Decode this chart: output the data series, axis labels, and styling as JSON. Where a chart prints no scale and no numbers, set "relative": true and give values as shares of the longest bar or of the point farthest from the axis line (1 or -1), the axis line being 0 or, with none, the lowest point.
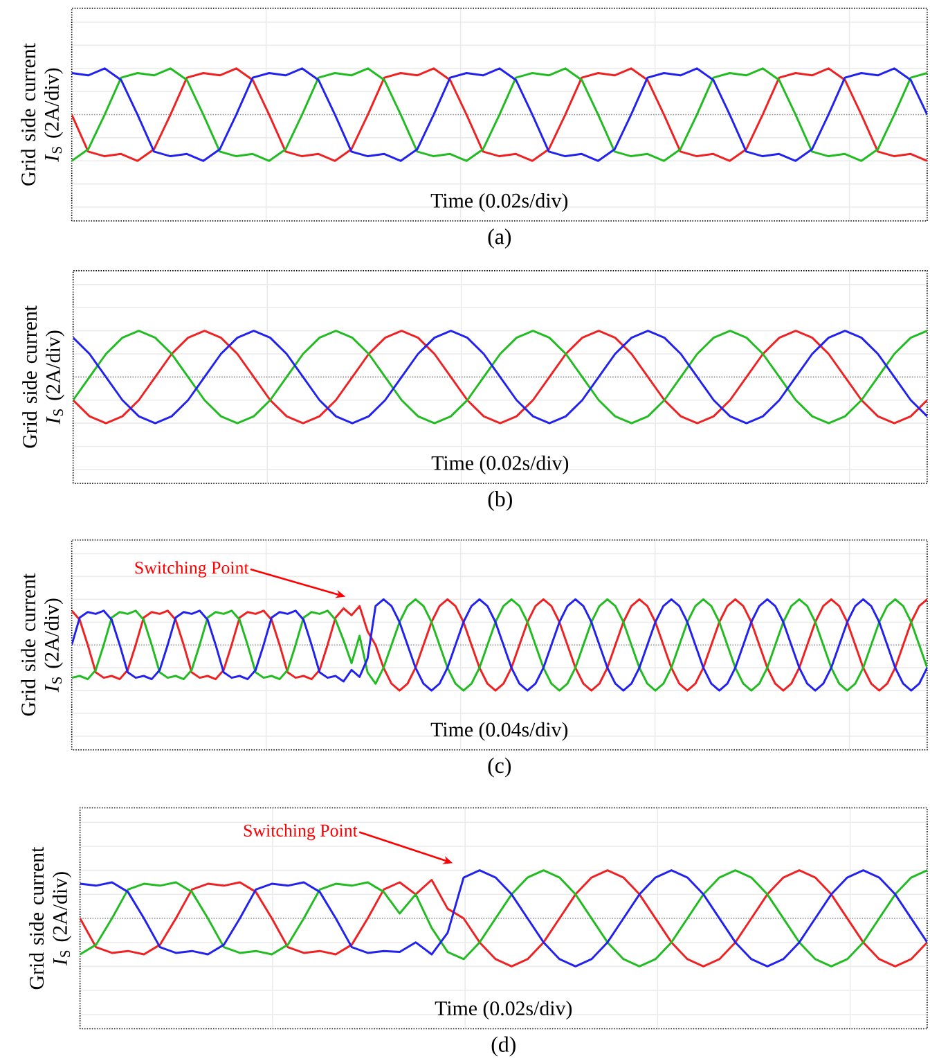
{
  "chart_data": [
    {
      "type": "line",
      "title": "(a)",
      "xlabel": "Time (0.02s/div)",
      "ylabel": "Grid side current *I*$_{S}$ (2A/div)",
      "relative": true,
      "grid": true,
      "ref_lines": [
        {
          "axis": "y",
          "value": 0,
          "color": "#8c8c8c",
          "line_style": "dotted"
        }
      ],
      "categories": [
        null,
        null,
        null,
        null,
        null,
        null,
        null,
        null,
        null,
        null,
        null,
        null,
        null,
        null,
        null,
        null,
        null,
        null,
        null,
        null,
        null,
        null,
        null,
        null,
        null,
        null,
        null,
        null,
        null,
        null,
        null,
        null,
        null,
        null,
        null,
        null,
        null,
        null,
        null,
        null,
        null,
        null,
        null,
        null,
        null,
        null,
        null,
        null,
        null,
        null,
        null,
        null,
        null
      ],
      "series": [
        {
          "color": "#ee2222",
          "values": [
            0,
            -0.8,
            -0.9,
            -0.85,
            -1,
            -0.75,
            0,
            0.8,
            0.9,
            0.85,
            1,
            0.75,
            0,
            -0.8,
            -0.9,
            -0.85,
            -1,
            -0.75,
            0,
            0.8,
            0.9,
            0.85,
            1,
            0.75,
            0,
            -0.8,
            -0.9,
            -0.85,
            -1,
            -0.75,
            0,
            0.8,
            0.9,
            0.85,
            1,
            0.75,
            0,
            -0.8,
            -0.9,
            -0.85,
            -1,
            -0.75,
            0,
            0.8,
            0.9,
            0.85,
            1,
            0.75,
            0,
            -0.8,
            -0.9,
            -0.85,
            -1
          ]
        },
        {
          "color": "#22bb22",
          "values": [
            -1,
            -0.75,
            0,
            0.8,
            0.9,
            0.85,
            1,
            0.75,
            0,
            -0.8,
            -0.9,
            -0.85,
            -1,
            -0.75,
            0,
            0.8,
            0.9,
            0.85,
            1,
            0.75,
            0,
            -0.8,
            -0.9,
            -0.85,
            -1,
            -0.75,
            0,
            0.8,
            0.9,
            0.85,
            1,
            0.75,
            0,
            -0.8,
            -0.9,
            -0.85,
            -1,
            -0.75,
            0,
            0.8,
            0.9,
            0.85,
            1,
            0.75,
            0,
            -0.8,
            -0.9,
            -0.85,
            -1,
            -0.75,
            0,
            0.8,
            0.9
          ]
        },
        {
          "color": "#2222ee",
          "values": [
            0.9,
            0.85,
            1,
            0.75,
            0,
            -0.8,
            -0.9,
            -0.85,
            -1,
            -0.75,
            0,
            0.8,
            0.9,
            0.85,
            1,
            0.75,
            0,
            -0.8,
            -0.9,
            -0.85,
            -1,
            -0.75,
            0,
            0.8,
            0.9,
            0.85,
            1,
            0.75,
            0,
            -0.8,
            -0.9,
            -0.85,
            -1,
            -0.75,
            0,
            0.8,
            0.9,
            0.85,
            1,
            0.75,
            0,
            -0.8,
            -0.9,
            -0.85,
            -1,
            -0.75,
            0,
            0.8,
            0.9,
            0.85,
            1,
            0.75,
            0
          ]
        }
      ]
    },
    {
      "type": "line",
      "title": "(b)",
      "xlabel": "Time (0.02s/div)",
      "ylabel": "Grid side current *I*$_{S}$ (2A/div)",
      "relative": true,
      "grid": true,
      "ref_lines": [
        {
          "axis": "y",
          "value": 0,
          "color": "#8c8c8c",
          "line_style": "dotted"
        }
      ],
      "categories": [
        null,
        null,
        null,
        null,
        null,
        null,
        null,
        null,
        null,
        null,
        null,
        null,
        null,
        null,
        null,
        null,
        null,
        null,
        null,
        null,
        null,
        null,
        null,
        null,
        null,
        null,
        null,
        null,
        null,
        null,
        null,
        null,
        null,
        null,
        null,
        null,
        null,
        null,
        null,
        null,
        null,
        null,
        null,
        null,
        null,
        null,
        null,
        null,
        null,
        null,
        null,
        null,
        null
      ],
      "series": [
        {
          "color": "#ee2222",
          "values": [
            -0.5,
            -0.85,
            -1,
            -0.85,
            -0.5,
            0,
            0.5,
            0.85,
            1,
            0.85,
            0.5,
            0,
            -0.5,
            -0.85,
            -1,
            -0.85,
            -0.5,
            0,
            0.5,
            0.85,
            1,
            0.85,
            0.5,
            0,
            -0.5,
            -0.85,
            -1,
            -0.85,
            -0.5,
            0,
            0.5,
            0.85,
            1,
            0.85,
            0.5,
            0,
            -0.5,
            -0.85,
            -1,
            -0.85,
            -0.5,
            0,
            0.5,
            0.85,
            1,
            0.85,
            0.5,
            0,
            -0.5,
            -0.85,
            -1,
            -0.85,
            -0.5
          ]
        },
        {
          "color": "#22bb22",
          "values": [
            -0.5,
            0,
            0.5,
            0.85,
            1,
            0.85,
            0.5,
            0,
            -0.5,
            -0.85,
            -1,
            -0.85,
            -0.5,
            0,
            0.5,
            0.85,
            1,
            0.85,
            0.5,
            0,
            -0.5,
            -0.85,
            -1,
            -0.85,
            -0.5,
            0,
            0.5,
            0.85,
            1,
            0.85,
            0.5,
            0,
            -0.5,
            -0.85,
            -1,
            -0.85,
            -0.5,
            0,
            0.5,
            0.85,
            1,
            0.85,
            0.5,
            0,
            -0.5,
            -0.85,
            -1,
            -0.85,
            -0.5,
            0,
            0.5,
            0.85,
            1
          ]
        },
        {
          "color": "#2222ee",
          "values": [
            0.85,
            0.5,
            0,
            -0.5,
            -0.85,
            -1,
            -0.85,
            -0.5,
            0,
            0.5,
            0.85,
            1,
            0.85,
            0.5,
            0,
            -0.5,
            -0.85,
            -1,
            -0.85,
            -0.5,
            0,
            0.5,
            0.85,
            1,
            0.85,
            0.5,
            0,
            -0.5,
            -0.85,
            -1,
            -0.85,
            -0.5,
            0,
            0.5,
            0.85,
            1,
            0.85,
            0.5,
            0,
            -0.5,
            -0.85,
            -1,
            -0.85,
            -0.5,
            0,
            0.5,
            0.85,
            1,
            0.85,
            0.5,
            0,
            -0.5,
            -0.85
          ]
        }
      ]
    },
    {
      "type": "line",
      "title": "(c)",
      "xlabel": "Time (0.04s/div)",
      "ylabel": "Grid side current *I*$_{S}$ (2A/div)",
      "relative": true,
      "grid": true,
      "ref_lines": [
        {
          "axis": "y",
          "value": 0,
          "color": "#8c8c8c",
          "line_style": "dotted"
        }
      ],
      "annotations": [
        "Switching Point"
      ],
      "categories": [
        null,
        null,
        null,
        null,
        null,
        null,
        null,
        null,
        null,
        null,
        null,
        null,
        null,
        null,
        null,
        null,
        null,
        null,
        null,
        null,
        null,
        null,
        null,
        null,
        null,
        null,
        null,
        null,
        null,
        null,
        null,
        null,
        null,
        null,
        null,
        null,
        null,
        null,
        null,
        null,
        null,
        null,
        null,
        null,
        null,
        null,
        null,
        null,
        null,
        null,
        null,
        null,
        null,
        null,
        null,
        null,
        null,
        null,
        null,
        null,
        null,
        null,
        null,
        null,
        null,
        null,
        null,
        null,
        null,
        null,
        null,
        null,
        null,
        null,
        null,
        null,
        null,
        null,
        null,
        null,
        null,
        null,
        null,
        null,
        null,
        null,
        null,
        null,
        null,
        null,
        null,
        null,
        null,
        null,
        null,
        null,
        null,
        null,
        null,
        null,
        null,
        null,
        null,
        null,
        null,
        null,
        null,
        null
      ],
      "series": [
        {
          "color": "#ee2222",
          "values": [
            0.75,
            0.55,
            0,
            -0.6,
            -0.72,
            -0.68,
            -0.75,
            -0.55,
            0,
            0.6,
            0.72,
            0.68,
            0.75,
            0.55,
            0,
            -0.6,
            -0.72,
            -0.68,
            -0.75,
            -0.55,
            0,
            0.6,
            0.72,
            0.68,
            0.75,
            0.55,
            0,
            -0.6,
            -0.72,
            -0.68,
            -0.75,
            -0.55,
            0,
            0.6,
            0.8,
            0.65,
            0.85,
            0.3,
            0,
            -0.5,
            -0.85,
            -1,
            -0.85,
            -0.5,
            0,
            0.5,
            0.85,
            1,
            0.85,
            0.5,
            0,
            -0.5,
            -0.85,
            -1,
            -0.85,
            -0.5,
            0,
            0.5,
            0.85,
            1,
            0.85,
            0.5,
            0,
            -0.5,
            -0.85,
            -1,
            -0.85,
            -0.5,
            0,
            0.5,
            0.85,
            1,
            0.85,
            0.5,
            0,
            -0.5,
            -0.85,
            -1,
            -0.85,
            -0.5,
            0,
            0.5,
            0.85,
            1,
            0.85,
            0.5,
            0,
            -0.5,
            -0.85,
            -1,
            -0.85,
            -0.5,
            0,
            0.5,
            0.85,
            1,
            0.85,
            0.5,
            0,
            -0.5,
            -0.85,
            -1,
            -0.85,
            -0.5,
            0,
            0.5,
            0.85,
            1
          ]
        },
        {
          "color": "#22bb22",
          "values": [
            -0.72,
            -0.68,
            -0.75,
            -0.55,
            0,
            0.6,
            0.72,
            0.68,
            0.75,
            0.55,
            0,
            -0.6,
            -0.72,
            -0.68,
            -0.75,
            -0.55,
            0,
            0.6,
            0.72,
            0.68,
            0.75,
            0.55,
            0,
            -0.6,
            -0.72,
            -0.68,
            -0.75,
            -0.55,
            0,
            0.6,
            0.72,
            0.68,
            0.75,
            0.55,
            0.1,
            -0.4,
            0.2,
            -0.6,
            -0.85,
            -0.5,
            0,
            0.5,
            0.85,
            1,
            0.85,
            0.5,
            0,
            -0.5,
            -0.85,
            -1,
            -0.85,
            -0.5,
            0,
            0.5,
            0.85,
            1,
            0.85,
            0.5,
            0,
            -0.5,
            -0.85,
            -1,
            -0.85,
            -0.5,
            0,
            0.5,
            0.85,
            1,
            0.85,
            0.5,
            0,
            -0.5,
            -0.85,
            -1,
            -0.85,
            -0.5,
            0,
            0.5,
            0.85,
            1,
            0.85,
            0.5,
            0,
            -0.5,
            -0.85,
            -1,
            -0.85,
            -0.5,
            0,
            0.5,
            0.85,
            1,
            0.85,
            0.5,
            0,
            -0.5,
            -0.85,
            -1,
            -0.85,
            -0.5,
            0,
            0.5,
            0.85,
            1,
            0.85,
            0.5,
            0,
            -0.5
          ]
        },
        {
          "color": "#2222ee",
          "values": [
            0,
            0.6,
            0.72,
            0.68,
            0.75,
            0.55,
            0,
            -0.6,
            -0.72,
            -0.68,
            -0.75,
            -0.55,
            0,
            0.6,
            0.72,
            0.68,
            0.75,
            0.55,
            0,
            -0.6,
            -0.72,
            -0.68,
            -0.75,
            -0.55,
            0,
            0.6,
            0.72,
            0.68,
            0.75,
            0.55,
            0,
            -0.6,
            -0.72,
            -0.68,
            -0.8,
            -0.55,
            -0.7,
            -0.3,
            0.85,
            1,
            0.85,
            0.5,
            0,
            -0.5,
            -0.85,
            -1,
            -0.85,
            -0.5,
            0,
            0.5,
            0.85,
            1,
            0.85,
            0.5,
            0,
            -0.5,
            -0.85,
            -1,
            -0.85,
            -0.5,
            0,
            0.5,
            0.85,
            1,
            0.85,
            0.5,
            0,
            -0.5,
            -0.85,
            -1,
            -0.85,
            -0.5,
            0,
            0.5,
            0.85,
            1,
            0.85,
            0.5,
            0,
            -0.5,
            -0.85,
            -1,
            -0.85,
            -0.5,
            0,
            0.5,
            0.85,
            1,
            0.85,
            0.5,
            0,
            -0.5,
            -0.85,
            -1,
            -0.85,
            -0.5,
            0,
            0.5,
            0.85,
            1,
            0.85,
            0.5,
            0,
            -0.5,
            -0.85,
            -1,
            -0.85,
            -0.5
          ]
        }
      ]
    },
    {
      "type": "line",
      "title": "(d)",
      "xlabel": "Time (0.02s/div)",
      "ylabel": "Grid side current *I*$_{S}$ (2A/div)",
      "relative": true,
      "grid": true,
      "ref_lines": [
        {
          "axis": "y",
          "value": 0,
          "color": "#8c8c8c",
          "line_style": "dotted"
        }
      ],
      "annotations": [
        "Switching Point"
      ],
      "categories": [
        null,
        null,
        null,
        null,
        null,
        null,
        null,
        null,
        null,
        null,
        null,
        null,
        null,
        null,
        null,
        null,
        null,
        null,
        null,
        null,
        null,
        null,
        null,
        null,
        null,
        null,
        null,
        null,
        null,
        null,
        null,
        null,
        null,
        null,
        null,
        null,
        null,
        null,
        null,
        null,
        null,
        null,
        null,
        null,
        null,
        null,
        null,
        null,
        null,
        null,
        null,
        null,
        null,
        null
      ],
      "series": [
        {
          "color": "#ee2222",
          "values": [
            0,
            -0.6,
            -0.72,
            -0.68,
            -0.75,
            -0.55,
            0,
            0.6,
            0.72,
            0.68,
            0.75,
            0.55,
            0,
            -0.6,
            -0.72,
            -0.68,
            -0.75,
            -0.55,
            0,
            0.6,
            0.75,
            0.5,
            0.8,
            0.2,
            0,
            -0.5,
            -0.85,
            -1,
            -0.85,
            -0.5,
            0,
            0.5,
            0.85,
            1,
            0.85,
            0.5,
            0,
            -0.5,
            -0.85,
            -1,
            -0.85,
            -0.5,
            0,
            0.5,
            0.85,
            1,
            0.85,
            0.5,
            0,
            -0.5,
            -0.85,
            -1,
            -0.85,
            -0.5
          ]
        },
        {
          "color": "#22bb22",
          "values": [
            -0.75,
            -0.55,
            0,
            0.6,
            0.72,
            0.68,
            0.75,
            0.55,
            0,
            -0.6,
            -0.72,
            -0.68,
            -0.75,
            -0.55,
            0,
            0.6,
            0.72,
            0.68,
            0.75,
            0.55,
            0.1,
            0.5,
            -0.2,
            -0.7,
            -0.85,
            -0.5,
            0,
            0.5,
            0.85,
            1,
            0.85,
            0.5,
            0,
            -0.5,
            -0.85,
            -1,
            -0.85,
            -0.5,
            0,
            0.5,
            0.85,
            1,
            0.85,
            0.5,
            0,
            -0.5,
            -0.85,
            -1,
            -0.85,
            -0.5,
            0,
            0.5,
            0.85,
            1
          ]
        },
        {
          "color": "#2222ee",
          "values": [
            0.72,
            0.68,
            0.75,
            0.55,
            0,
            -0.6,
            -0.72,
            -0.68,
            -0.75,
            -0.55,
            0,
            0.6,
            0.72,
            0.68,
            0.75,
            0.55,
            0,
            -0.6,
            -0.72,
            -0.68,
            -0.7,
            -0.5,
            -0.75,
            -0.3,
            0.85,
            1,
            0.85,
            0.5,
            0,
            -0.5,
            -0.85,
            -1,
            -0.85,
            -0.5,
            0,
            0.5,
            0.85,
            1,
            0.85,
            0.5,
            0,
            -0.5,
            -0.85,
            -1,
            -0.85,
            -0.5,
            0,
            0.5,
            0.85,
            1,
            0.85,
            0.5,
            0,
            -0.5
          ]
        }
      ]
    }
  ]
}
